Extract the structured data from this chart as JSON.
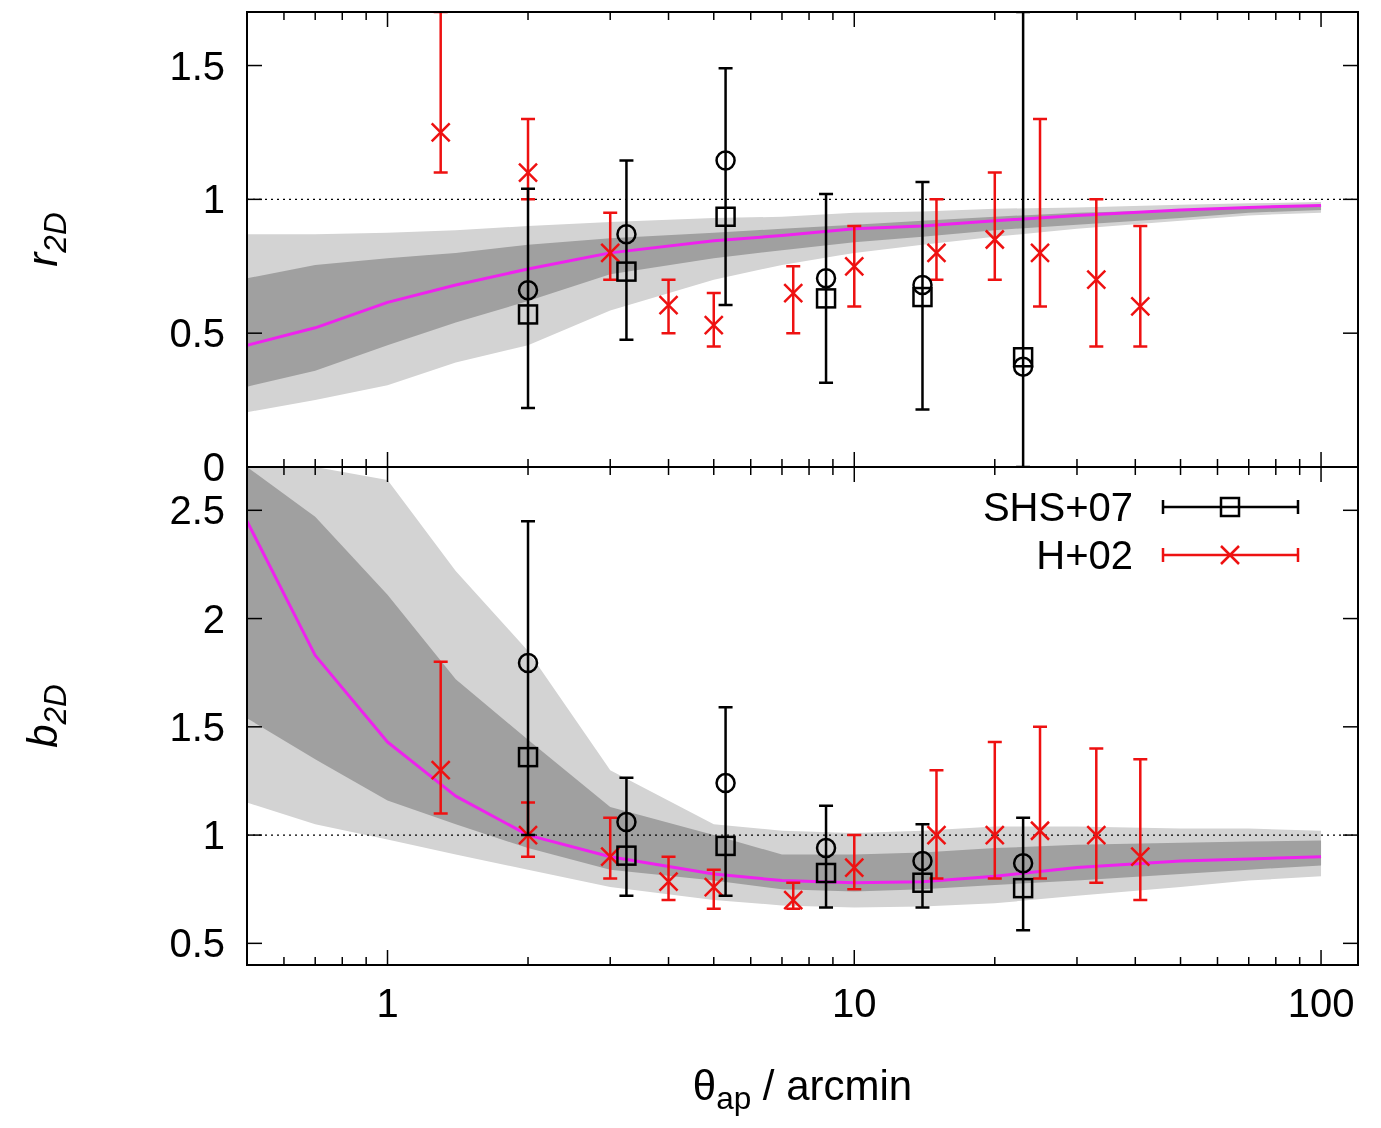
{
  "chart_data": [
    {
      "type": "scatter",
      "ylabel": "r$_{2D}$",
      "log": "x",
      "xlim": [
        0.5,
        120
      ],
      "ylim": [
        0,
        1.7
      ],
      "xticks": [
        {
          "value": 0.6,
          "label": null
        },
        {
          "value": 0.7,
          "label": null
        },
        {
          "value": 0.8,
          "label": null
        },
        {
          "value": 0.9,
          "label": null
        },
        1,
        {
          "value": 2,
          "label": null
        },
        {
          "value": 3,
          "label": null
        },
        {
          "value": 4,
          "label": null
        },
        {
          "value": 5,
          "label": null
        },
        {
          "value": 6,
          "label": null
        },
        {
          "value": 7,
          "label": null
        },
        {
          "value": 8,
          "label": null
        },
        {
          "value": 9,
          "label": null
        },
        10,
        {
          "value": 20,
          "label": null
        },
        {
          "value": 30,
          "label": null
        },
        {
          "value": 40,
          "label": null
        },
        {
          "value": 50,
          "label": null
        },
        {
          "value": 60,
          "label": null
        },
        {
          "value": 70,
          "label": null
        },
        {
          "value": 80,
          "label": null
        },
        {
          "value": 90,
          "label": null
        },
        100
      ],
      "yticks": [
        0,
        0.5,
        1,
        1.5
      ],
      "tick_labels": "y",
      "grid": false,
      "legend": false,
      "ref_lines": [
        {
          "axis": "y",
          "value": 1,
          "color": "#000000",
          "line_style": "dotted"
        }
      ],
      "series": [
        {
          "type": "line",
          "color": "#d3d3d3",
          "x": [
            0.5,
            0.7,
            1,
            1.4,
            2,
            3,
            5,
            7,
            10,
            14,
            20,
            30,
            50,
            70,
            100
          ],
          "values": [
            null,
            null,
            null,
            null,
            null,
            null,
            null,
            null,
            null,
            null,
            null,
            null,
            null,
            null,
            null
          ],
          "lower": [
            0.205,
            0.25,
            0.305,
            0.39,
            0.455,
            0.585,
            0.7,
            0.755,
            0.8,
            0.83,
            0.86,
            0.89,
            0.92,
            0.94,
            0.95
          ],
          "upper": [
            0.87,
            0.87,
            0.875,
            0.885,
            0.9,
            0.915,
            0.93,
            0.935,
            0.95,
            0.955,
            0.965,
            0.97,
            0.98,
            0.985,
            0.99
          ]
        },
        {
          "type": "line",
          "color": "#a0a0a0",
          "x": [
            0.5,
            0.7,
            1,
            1.4,
            2,
            3,
            5,
            7,
            10,
            14,
            20,
            30,
            50,
            70,
            100
          ],
          "values": [
            null,
            null,
            null,
            null,
            null,
            null,
            null,
            null,
            null,
            null,
            null,
            null,
            null,
            null,
            null
          ],
          "lower": [
            0.3,
            0.36,
            0.455,
            0.54,
            0.62,
            0.72,
            0.78,
            0.81,
            0.84,
            0.86,
            0.885,
            0.905,
            0.93,
            0.95,
            0.96
          ],
          "upper": [
            0.705,
            0.755,
            0.78,
            0.8,
            0.83,
            0.855,
            0.875,
            0.89,
            0.905,
            0.92,
            0.935,
            0.95,
            0.96,
            0.97,
            0.98
          ]
        },
        {
          "type": "line",
          "color": "#ee22ee",
          "line_style": "solid",
          "marker": "none",
          "x": [
            0.5,
            0.7,
            1,
            1.4,
            2,
            3,
            5,
            7,
            10,
            14,
            20,
            30,
            50,
            70,
            100
          ],
          "values": [
            0.455,
            0.52,
            0.615,
            0.68,
            0.74,
            0.8,
            0.845,
            0.865,
            0.89,
            0.9,
            0.92,
            0.94,
            0.96,
            0.97,
            0.977
          ]
        },
        {
          "type": "scatter",
          "color": "#ee1111",
          "marker": "cross",
          "x": [
            1.3,
            2,
            3,
            4,
            5,
            7.4,
            10,
            15,
            20,
            25,
            33,
            41
          ],
          "values": [
            1.25,
            1.1,
            0.8,
            0.605,
            0.53,
            0.65,
            0.75,
            0.8,
            0.85,
            0.8,
            0.7,
            0.6
          ],
          "errors": [
            [
              1.1,
              1.7
            ],
            [
              1.0,
              1.3
            ],
            [
              0.7,
              0.95
            ],
            [
              0.5,
              0.7
            ],
            [
              0.45,
              0.65
            ],
            [
              0.5,
              0.75
            ],
            [
              0.6,
              0.9
            ],
            [
              0.7,
              1.0
            ],
            [
              0.7,
              1.1
            ],
            [
              0.6,
              1.3
            ],
            [
              0.45,
              1.0
            ],
            [
              0.45,
              0.9
            ]
          ]
        },
        {
          "type": "scatter",
          "color": "#000000",
          "marker": "circle",
          "x": [
            2,
            3.25,
            5.3,
            8.7,
            14,
            23
          ],
          "values": [
            0.66,
            0.87,
            1.145,
            0.705,
            0.68,
            0.375
          ]
        },
        {
          "type": "scatter",
          "color": "#000000",
          "marker": "square",
          "x": [
            2,
            3.25,
            5.3,
            8.7,
            14,
            23
          ],
          "values": [
            0.57,
            0.73,
            0.935,
            0.63,
            0.635,
            0.41
          ],
          "errors": [
            [
              0.22,
              1.04
            ],
            [
              0.475,
              1.145
            ],
            [
              0.605,
              1.49
            ],
            [
              0.315,
              1.02
            ],
            [
              0.215,
              1.065
            ],
            [
              0,
              1.7
            ]
          ]
        }
      ]
    },
    {
      "type": "scatter",
      "ylabel": "b$_{2D}$",
      "xlabel": "θ$_{ap}$ / arcmin",
      "log": "x",
      "xlim": [
        0.5,
        120
      ],
      "ylim": [
        0.4,
        2.7
      ],
      "xticks": [
        {
          "value": 0.6,
          "label": null
        },
        {
          "value": 0.7,
          "label": null
        },
        {
          "value": 0.8,
          "label": null
        },
        {
          "value": 0.9,
          "label": null
        },
        1,
        {
          "value": 2,
          "label": null
        },
        {
          "value": 3,
          "label": null
        },
        {
          "value": 4,
          "label": null
        },
        {
          "value": 5,
          "label": null
        },
        {
          "value": 6,
          "label": null
        },
        {
          "value": 7,
          "label": null
        },
        {
          "value": 8,
          "label": null
        },
        {
          "value": 9,
          "label": null
        },
        10,
        {
          "value": 20,
          "label": null
        },
        {
          "value": 30,
          "label": null
        },
        {
          "value": 40,
          "label": null
        },
        {
          "value": 50,
          "label": null
        },
        {
          "value": 60,
          "label": null
        },
        {
          "value": 70,
          "label": null
        },
        {
          "value": 80,
          "label": null
        },
        {
          "value": 90,
          "label": null
        },
        100
      ],
      "yticks": [
        0.5,
        1,
        1.5,
        2,
        2.5
      ],
      "grid": false,
      "legend": "top right",
      "ref_lines": [
        {
          "axis": "y",
          "value": 1,
          "color": "#000000",
          "line_style": "dotted"
        }
      ],
      "series": [
        {
          "type": "line",
          "color": "#d3d3d3",
          "x": [
            0.5,
            0.7,
            1,
            1.4,
            2,
            3,
            5,
            7,
            10,
            14,
            20,
            30,
            50,
            70,
            100
          ],
          "values": [
            null,
            null,
            null,
            null,
            null,
            null,
            null,
            null,
            null,
            null,
            null,
            null,
            null,
            null,
            null
          ],
          "lower": [
            1.15,
            1.05,
            0.98,
            0.91,
            0.84,
            0.76,
            0.7,
            0.675,
            0.665,
            0.67,
            0.685,
            0.72,
            0.76,
            0.79,
            0.81
          ],
          "upper": [
            2.7,
            2.7,
            2.64,
            2.22,
            1.85,
            1.3,
            1.05,
            1.02,
            1.01,
            1.02,
            1.04,
            1.04,
            1.03,
            1.03,
            1.02
          ]
        },
        {
          "type": "line",
          "color": "#a0a0a0",
          "x": [
            0.5,
            0.7,
            1,
            1.4,
            2,
            3,
            5,
            7,
            10,
            14,
            20,
            30,
            50,
            70,
            100
          ],
          "values": [
            null,
            null,
            null,
            null,
            null,
            null,
            null,
            null,
            null,
            null,
            null,
            null,
            null,
            null,
            null
          ],
          "lower": [
            1.54,
            1.35,
            1.16,
            1.05,
            0.94,
            0.84,
            0.79,
            0.75,
            0.74,
            0.75,
            0.77,
            0.79,
            0.82,
            0.84,
            0.86
          ],
          "upper": [
            2.7,
            2.47,
            2.11,
            1.72,
            1.44,
            1.13,
            1.0,
            0.91,
            0.91,
            0.92,
            0.94,
            0.955,
            0.965,
            0.97,
            0.975
          ]
        },
        {
          "type": "line",
          "color": "#ee22ee",
          "line_style": "solid",
          "marker": "none",
          "x": [
            0.5,
            0.7,
            1,
            1.4,
            2,
            3,
            5,
            7,
            10,
            14,
            20,
            30,
            50,
            70,
            100
          ],
          "values": [
            2.45,
            1.83,
            1.43,
            1.18,
            1.0,
            0.9,
            0.82,
            0.79,
            0.78,
            0.785,
            0.81,
            0.85,
            0.88,
            0.89,
            0.9
          ]
        },
        {
          "type": "scatter",
          "name": "H+02",
          "color": "#ee1111",
          "marker": "cross",
          "x": [
            1.3,
            2,
            3,
            4,
            5,
            7.4,
            10,
            15,
            20,
            25,
            33,
            41
          ],
          "values": [
            1.3,
            1.0,
            0.9,
            0.785,
            0.76,
            0.7,
            0.85,
            1.0,
            1.0,
            1.02,
            1.0,
            0.9
          ],
          "errors": [
            [
              1.1,
              1.8
            ],
            [
              0.9,
              1.15
            ],
            [
              0.8,
              1.08
            ],
            [
              0.7,
              0.9
            ],
            [
              0.66,
              0.84
            ],
            [
              0.66,
              0.78
            ],
            [
              0.75,
              1.0
            ],
            [
              0.8,
              1.3
            ],
            [
              0.8,
              1.43
            ],
            [
              0.8,
              1.5
            ],
            [
              0.78,
              1.4
            ],
            [
              0.7,
              1.35
            ]
          ]
        },
        {
          "type": "scatter",
          "color": "#000000",
          "marker": "circle",
          "x": [
            2,
            3.25,
            5.3,
            8.7,
            14,
            23
          ],
          "values": [
            1.795,
            1.06,
            1.24,
            0.94,
            0.88,
            0.87
          ]
        },
        {
          "type": "scatter",
          "name": "SHS+07",
          "color": "#000000",
          "marker": "square",
          "x": [
            2,
            3.25,
            5.3,
            8.7,
            14,
            23
          ],
          "values": [
            1.36,
            0.905,
            0.95,
            0.825,
            0.78,
            0.755
          ],
          "errors": [
            [
              1.0,
              2.45
            ],
            [
              0.72,
              1.265
            ],
            [
              0.72,
              1.59
            ],
            [
              0.665,
              1.135
            ],
            [
              0.665,
              1.05
            ],
            [
              0.56,
              1.08
            ]
          ]
        }
      ]
    }
  ]
}
